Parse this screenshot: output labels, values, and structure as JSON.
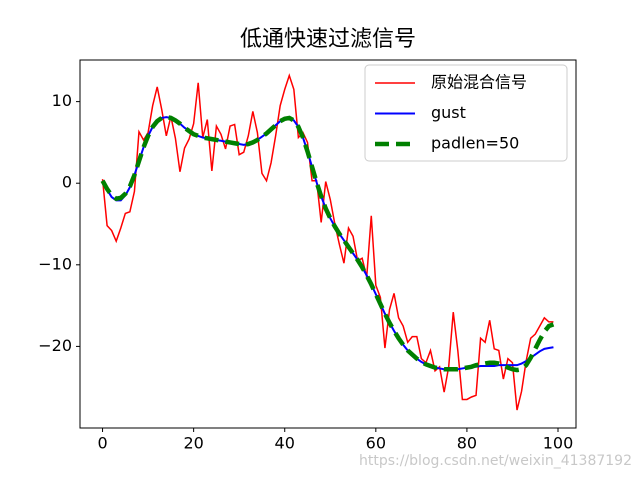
{
  "chart_data": {
    "type": "line",
    "title": "低通快速过滤信号",
    "x": [
      0,
      1,
      2,
      3,
      4,
      5,
      6,
      7,
      8,
      9,
      10,
      11,
      12,
      13,
      14,
      15,
      16,
      17,
      18,
      19,
      20,
      21,
      22,
      23,
      24,
      25,
      26,
      27,
      28,
      29,
      30,
      31,
      32,
      33,
      34,
      35,
      36,
      37,
      38,
      39,
      40,
      41,
      42,
      43,
      44,
      45,
      46,
      47,
      48,
      49,
      50,
      51,
      52,
      53,
      54,
      55,
      56,
      57,
      58,
      59,
      60,
      61,
      62,
      63,
      64,
      65,
      66,
      67,
      68,
      69,
      70,
      71,
      72,
      73,
      74,
      75,
      76,
      77,
      78,
      79,
      80,
      81,
      82,
      83,
      84,
      85,
      86,
      87,
      88,
      89,
      90,
      91,
      92,
      93,
      94,
      95,
      96,
      97,
      98,
      99
    ],
    "series": [
      {
        "name": "原始混合信号",
        "color": "#ff0000",
        "linestyle": "solid",
        "values": [
          0.5,
          -5.2,
          -5.8,
          -7.1,
          -5.5,
          -3.7,
          -3.5,
          -1,
          6.3,
          5.3,
          6.2,
          9.5,
          11.8,
          9,
          5.8,
          8.2,
          5.5,
          1.4,
          4.3,
          5.4,
          7.3,
          12.3,
          5.6,
          7.8,
          1.5,
          7,
          6,
          4.2,
          7,
          7.2,
          3.5,
          3.8,
          5.8,
          8.8,
          6.2,
          1.2,
          0.3,
          2.5,
          5.8,
          9.5,
          11.5,
          13.2,
          11.5,
          5.6,
          6.2,
          5,
          0.3,
          0.3,
          -4.8,
          0.2,
          -2,
          -5,
          -7.5,
          -9.8,
          -5.5,
          -6.5,
          -9.5,
          -9.2,
          -11.5,
          -4,
          -12.5,
          -14,
          -20.2,
          -15.5,
          -13.5,
          -16.5,
          -17.5,
          -19.5,
          -18.8,
          -18.8,
          -21.5,
          -22,
          -20.5,
          -23,
          -22.5,
          -25.6,
          -22.5,
          -15.8,
          -20.5,
          -26.5,
          -26.5,
          -26.2,
          -26,
          -19,
          -19.5,
          -16.8,
          -20.3,
          -20.5,
          -24,
          -21.5,
          -22,
          -27.8,
          -25.5,
          -21.8,
          -19,
          -18.5,
          -17.5,
          -16.5,
          -17,
          -17
        ]
      },
      {
        "name": "gust",
        "color": "#0000ff",
        "linestyle": "solid",
        "values": [
          0.3,
          -0.8,
          -1.7,
          -2.1,
          -2.1,
          -1.5,
          -0.5,
          1,
          2.7,
          4.4,
          5.8,
          6.9,
          7.6,
          8,
          8.1,
          8,
          7.7,
          7.3,
          6.8,
          6.4,
          6,
          5.8,
          5.6,
          5.5,
          5.4,
          5.3,
          5.2,
          5.1,
          5,
          4.9,
          4.8,
          4.7,
          4.8,
          5,
          5.3,
          5.7,
          6.1,
          6.6,
          7.1,
          7.6,
          7.9,
          8,
          7.7,
          6.9,
          5.6,
          3.9,
          2,
          0.1,
          -1.6,
          -3.1,
          -4.3,
          -5.3,
          -6.2,
          -7,
          -7.8,
          -8.6,
          -9.4,
          -10.3,
          -11.3,
          -12.4,
          -13.6,
          -14.8,
          -16,
          -17.1,
          -18.1,
          -19,
          -19.8,
          -20.5,
          -21,
          -21.5,
          -21.9,
          -22.2,
          -22.4,
          -22.6,
          -22.7,
          -22.8,
          -22.8,
          -22.8,
          -22.8,
          -22.7,
          -22.6,
          -22.5,
          -22.5,
          -22.4,
          -22.4,
          -22.4,
          -22.4,
          -22.3,
          -22.3,
          -22.3,
          -22.3,
          -22.3,
          -22.1,
          -21.8,
          -21.4,
          -21,
          -20.6,
          -20.3,
          -20.2,
          -20.1
        ]
      },
      {
        "name": "padlen=50",
        "color": "#008000",
        "linestyle": "dashed",
        "values": [
          0.3,
          -0.7,
          -1.5,
          -1.9,
          -1.8,
          -1.3,
          -0.4,
          1,
          2.7,
          4.4,
          5.8,
          6.9,
          7.6,
          8,
          8.1,
          8,
          7.7,
          7.3,
          6.8,
          6.4,
          6,
          5.8,
          5.6,
          5.5,
          5.4,
          5.3,
          5.2,
          5.1,
          5,
          4.9,
          4.8,
          4.7,
          4.8,
          5,
          5.3,
          5.7,
          6.1,
          6.6,
          7.1,
          7.6,
          7.9,
          8,
          7.7,
          6.9,
          5.6,
          3.9,
          2,
          0.1,
          -1.6,
          -3.1,
          -4.3,
          -5.3,
          -6.2,
          -7,
          -7.8,
          -8.6,
          -9.4,
          -10.3,
          -11.3,
          -12.4,
          -13.6,
          -14.8,
          -16,
          -17.1,
          -18.1,
          -19,
          -19.8,
          -20.5,
          -21,
          -21.5,
          -21.9,
          -22.2,
          -22.4,
          -22.6,
          -22.7,
          -22.8,
          -22.8,
          -22.8,
          -22.8,
          -22.7,
          -22.6,
          -22.5,
          -22.3,
          -22.2,
          -22.1,
          -22,
          -22,
          -22.1,
          -22.3,
          -22.6,
          -22.8,
          -22.9,
          -22.8,
          -22.3,
          -21.4,
          -20.3,
          -19.2,
          -18.2,
          -17.5,
          -17.3
        ]
      }
    ],
    "xlim": [
      -4.95,
      103.95
    ],
    "ylim": [
      -30,
      15.1
    ],
    "xticks": [
      0,
      20,
      40,
      60,
      80,
      100
    ],
    "yticks": [
      {
        "value": -20,
        "label": "−20"
      },
      {
        "value": -10,
        "label": "−10"
      },
      0,
      10
    ],
    "legend": "upper right",
    "watermark": "https://blog.csdn.net/weixin_41387192"
  }
}
